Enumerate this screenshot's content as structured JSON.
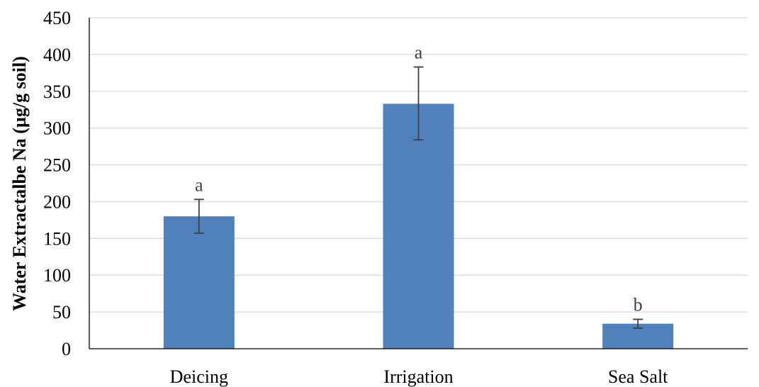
{
  "chart_data": {
    "type": "bar",
    "title": "",
    "xlabel": "",
    "ylabel": "Water Extractalbe Na (µg/g soil)",
    "categories": [
      "Deicing",
      "Irrigation",
      "Sea Salt"
    ],
    "values": [
      180,
      333,
      34
    ],
    "error_low": [
      157,
      284,
      28
    ],
    "error_high": [
      203,
      383,
      40
    ],
    "significance_labels": [
      "a",
      "a",
      "b"
    ],
    "ylim": [
      0,
      450
    ],
    "yticks": [
      0,
      50,
      100,
      150,
      200,
      250,
      300,
      350,
      400,
      450
    ],
    "ytick_labels": [
      "0",
      "50",
      "100",
      "150",
      "200",
      "250",
      "300",
      "350",
      "400",
      "450"
    ],
    "grid": true,
    "legend": false,
    "colors": {
      "bar": "#4f81bd",
      "error_bar": "#404040",
      "gridline": "#d9d9d9"
    }
  }
}
